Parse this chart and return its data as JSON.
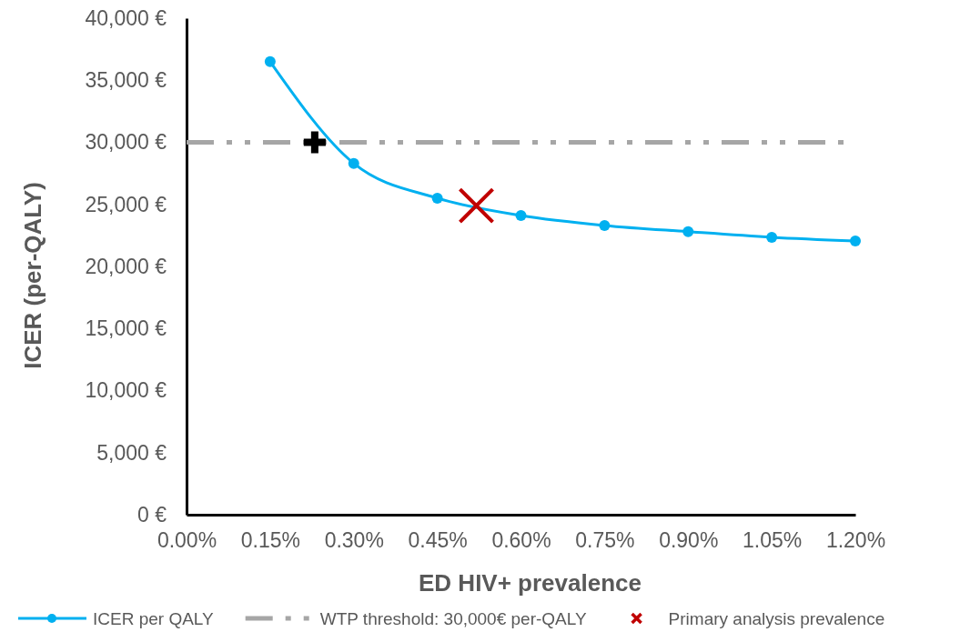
{
  "chart_data": {
    "type": "line",
    "xlabel": "ED HIV+ prevalence",
    "ylabel": "ICER (per-QALY)",
    "xlim": [
      0,
      1.2
    ],
    "xticks": [
      {
        "value": 0,
        "label": "0.00%"
      },
      {
        "value": 0.15,
        "label": "0.15%"
      },
      {
        "value": 0.3,
        "label": "0.30%"
      },
      {
        "value": 0.45,
        "label": "0.45%"
      },
      {
        "value": 0.6,
        "label": "0.60%"
      },
      {
        "value": 0.75,
        "label": "0.75%"
      },
      {
        "value": 0.9,
        "label": "0.90%"
      },
      {
        "value": 1.05,
        "label": "1.05%"
      },
      {
        "value": 1.2,
        "label": "1.20%"
      }
    ],
    "ylim": [
      0,
      40000
    ],
    "yticks": [
      {
        "value": 0,
        "label": "0 €"
      },
      {
        "value": 5000,
        "label": "5,000 €"
      },
      {
        "value": 10000,
        "label": "10,000 €"
      },
      {
        "value": 15000,
        "label": "15,000 €"
      },
      {
        "value": 20000,
        "label": "20,000 €"
      },
      {
        "value": 25000,
        "label": "25,000 €"
      },
      {
        "value": 30000,
        "label": "30,000 €"
      },
      {
        "value": 35000,
        "label": "35,000 €"
      },
      {
        "value": 40000,
        "label": "40,000 €"
      }
    ],
    "grid": false,
    "legend": "bottom",
    "marker": "circle",
    "line_style": "solid",
    "series": [
      {
        "name": "ICER per QALY",
        "color": "#00b0f0",
        "x": [
          0.15,
          0.3,
          0.45,
          0.6,
          0.75,
          0.9,
          1.05,
          1.2
        ],
        "values": [
          36500,
          28300,
          25500,
          24100,
          23300,
          22800,
          22350,
          22050
        ]
      },
      {
        "type": "scatter",
        "marker": "cross",
        "color": "#000000",
        "x": [
          0.23
        ],
        "values": [
          30000
        ]
      },
      {
        "name": "Primary analysis prevalence",
        "type": "scatter",
        "marker": "x",
        "color": "#c00000",
        "x": [
          0.52
        ],
        "values": [
          24900
        ]
      }
    ],
    "ref_lines": [
      {
        "axis": "y",
        "value": 30000,
        "label": "WTP threshold: 30,000€ per-QALY",
        "color": "#a6a6a6",
        "line_style": "dashed"
      }
    ]
  }
}
